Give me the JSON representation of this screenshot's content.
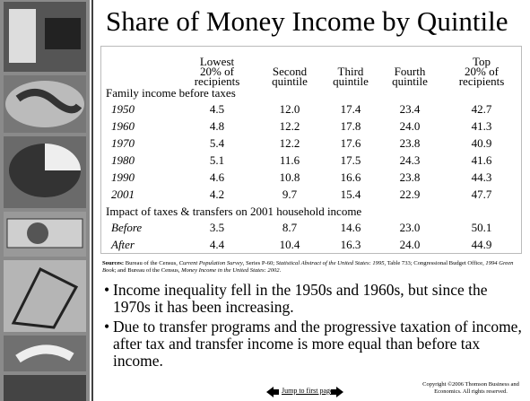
{
  "title": "Share of Money Income by Quintile",
  "table": {
    "columns": [
      [
        "Lowest",
        "20% of",
        "recipients"
      ],
      [
        "Second",
        "quintile"
      ],
      [
        "Third",
        "quintile"
      ],
      [
        "Fourth",
        "quintile"
      ],
      [
        "Top",
        "20% of",
        "recipients"
      ]
    ],
    "sections": [
      {
        "label": "Family income before taxes",
        "rows": [
          [
            "1950",
            "4.5",
            "12.0",
            "17.4",
            "23.4",
            "42.7"
          ],
          [
            "1960",
            "4.8",
            "12.2",
            "17.8",
            "24.0",
            "41.3"
          ],
          [
            "1970",
            "5.4",
            "12.2",
            "17.6",
            "23.8",
            "40.9"
          ],
          [
            "1980",
            "5.1",
            "11.6",
            "17.5",
            "24.3",
            "41.6"
          ],
          [
            "1990",
            "4.6",
            "10.8",
            "16.6",
            "23.8",
            "44.3"
          ],
          [
            "2001",
            "4.2",
            "9.7",
            "15.4",
            "22.9",
            "47.7"
          ]
        ]
      },
      {
        "label": "Impact of taxes & transfers on 2001 household income",
        "rows": [
          [
            "Before",
            "3.5",
            "8.7",
            "14.6",
            "23.0",
            "50.1"
          ],
          [
            "After",
            "4.4",
            "10.4",
            "16.3",
            "24.0",
            "44.9"
          ]
        ]
      }
    ]
  },
  "sources": {
    "label": "Sources:",
    "parts": [
      {
        "text": " Bureau of the Census, "
      },
      {
        "text": "Current Population Survey",
        "style": "italic"
      },
      {
        "text": ", Series P-60; "
      },
      {
        "text": "Statistical Abstract of the United States: 1995",
        "style": "italic"
      },
      {
        "text": ", Table 733; Congressional Budget Office, "
      },
      {
        "text": "1994 Green Book",
        "style": "italic"
      },
      {
        "text": "; and Bureau of the Census, "
      },
      {
        "text": "Money Income in the United States: 2002",
        "style": "italic"
      },
      {
        "text": "."
      }
    ]
  },
  "bullets": [
    "Income inequality fell in the 1950s and 1960s, but since the 1970s it has been increasing.",
    "Due to transfer programs and the progressive taxation of income, after tax and transfer income is more equal than before tax income."
  ],
  "footer": {
    "link": "Jump to first page",
    "copyright": [
      "Copyright ©2006  Thomson Business and",
      "Economics. All rights reserved."
    ]
  }
}
